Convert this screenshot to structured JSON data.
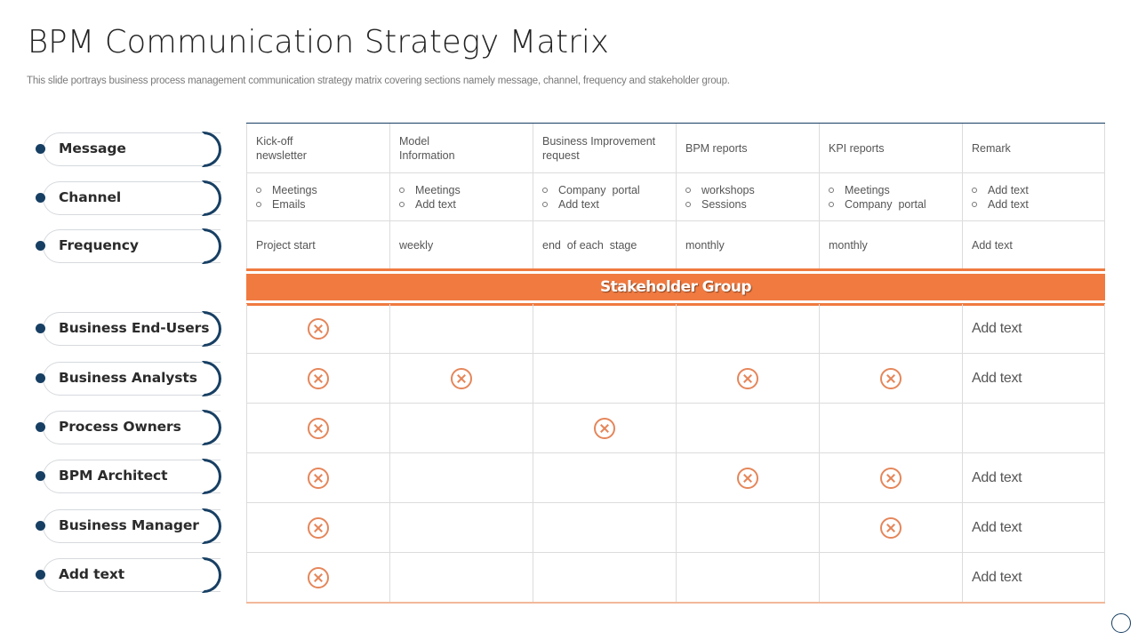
{
  "header": {
    "title": "BPM Communication Strategy Matrix",
    "subtitle": "This slide portrays business process management communication strategy matrix covering sections namely message, channel, frequency and stakeholder group."
  },
  "colors": {
    "navy": "#173f63",
    "orange": "#f07a40",
    "x_icon": "#e5865a"
  },
  "row_labels": {
    "top": [
      "Message",
      "Channel",
      "Frequency"
    ],
    "stakeholders": [
      "Business End-Users",
      "Business Analysts",
      "Process Owners",
      "BPM Architect",
      "Business Manager",
      "Add text"
    ]
  },
  "matrix": {
    "messages": [
      [
        "Kick-off",
        "newsletter"
      ],
      [
        "Model",
        "Information"
      ],
      [
        "Business Improvement",
        "request"
      ],
      [
        "BPM reports"
      ],
      [
        "KPI reports"
      ],
      [
        "Remark"
      ]
    ],
    "channels": [
      [
        "Meetings",
        "Emails"
      ],
      [
        "Meetings",
        "Add text"
      ],
      [
        "Company  portal",
        "Add text"
      ],
      [
        "workshops",
        "Sessions"
      ],
      [
        "Meetings",
        "Company  portal"
      ],
      [
        "Add text",
        "Add text"
      ]
    ],
    "frequency": [
      "Project start",
      "weekly",
      "end  of each  stage",
      "monthly",
      "monthly",
      "Add text"
    ],
    "band_label": "Stakeholder Group",
    "stakeholder_marks": [
      {
        "marks": [
          true,
          false,
          false,
          false,
          false
        ],
        "remark": "Add text"
      },
      {
        "marks": [
          true,
          true,
          false,
          true,
          true
        ],
        "remark": "Add text"
      },
      {
        "marks": [
          true,
          false,
          true,
          false,
          false
        ],
        "remark": ""
      },
      {
        "marks": [
          true,
          false,
          false,
          true,
          true
        ],
        "remark": "Add text"
      },
      {
        "marks": [
          true,
          false,
          false,
          false,
          true
        ],
        "remark": "Add text"
      },
      {
        "marks": [
          true,
          false,
          false,
          false,
          false
        ],
        "remark": "Add text"
      }
    ],
    "mark_icon": "circle-x-icon"
  }
}
